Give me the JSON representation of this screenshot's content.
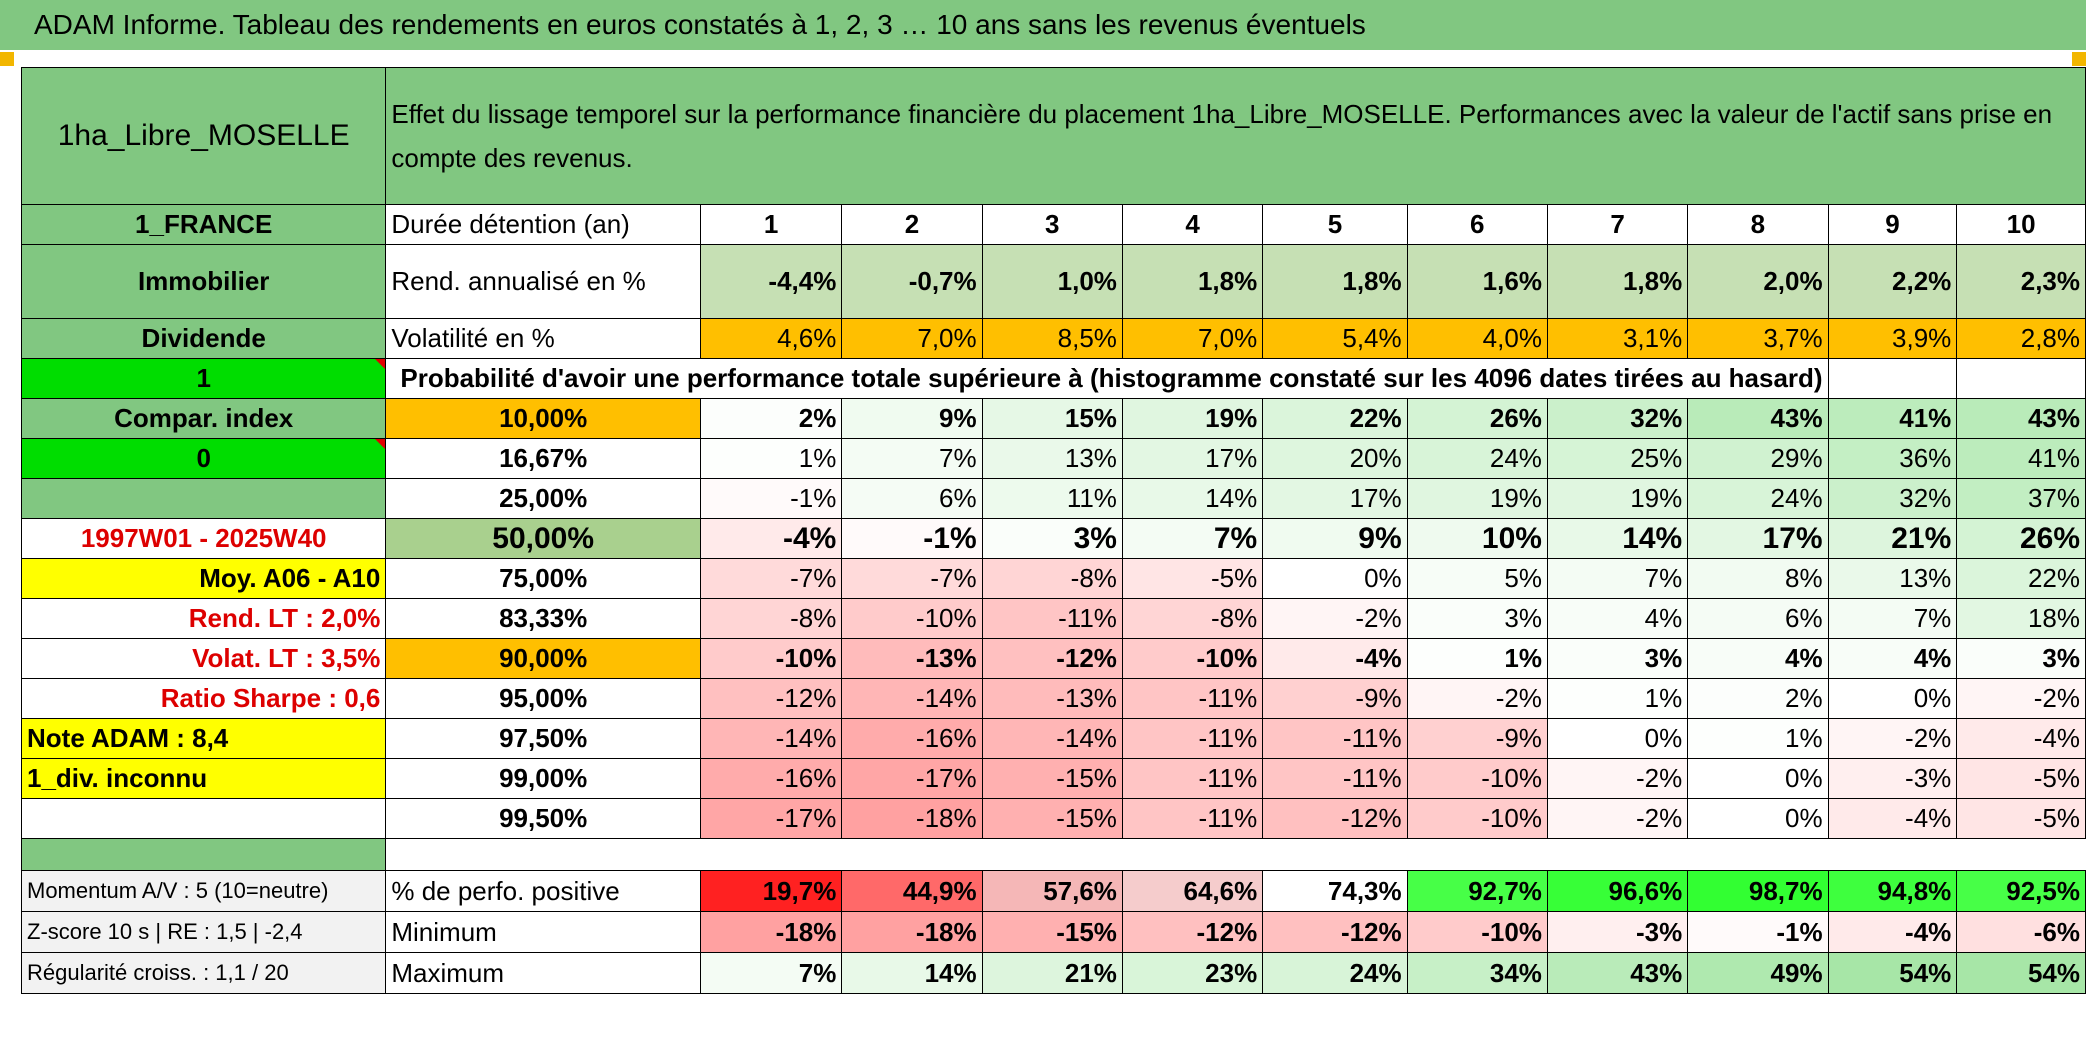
{
  "title": "ADAM Informe. Tableau des rendements en euros constatés à 1, 2, 3 … 10 ans sans les revenus éventuels",
  "left": {
    "asset": "1ha_Libre_MOSELLE",
    "country": "1_FRANCE",
    "sector": "Immobilier",
    "dividend_label": "Dividende",
    "dividend_value": "1",
    "compar_label": "Compar. index",
    "compar_value": "0",
    "period": "1997W01 - 2025W40",
    "moy": "Moy. A06 - A10",
    "rend_lt": "Rend. LT :   2,0%",
    "volat_lt": "Volat. LT :   3,5%",
    "sharpe": "Ratio Sharpe :    0,6",
    "note": "Note ADAM : 8,4",
    "div": "1_div. inconnu",
    "momentum": "Momentum A/V : 5 (10=neutre)",
    "zscore": "Z-score 10 s | RE : 1,5 | -2,4",
    "regularite": "Régularité croiss. : 1,1 / 20"
  },
  "header_text": "Effet du lissage temporel sur la performance financière du placement 1ha_Libre_MOSELLE. Performances avec la valeur de l'actif sans prise en compte des revenus.",
  "durations_label": "Durée détention (an)",
  "years": [
    "1",
    "2",
    "3",
    "4",
    "5",
    "6",
    "7",
    "8",
    "9",
    "10"
  ],
  "rend_label": "Rend. annualisé en %",
  "rend": [
    "-4,4%",
    "-0,7%",
    "1,0%",
    "1,8%",
    "1,8%",
    "1,6%",
    "1,8%",
    "2,0%",
    "2,2%",
    "2,3%"
  ],
  "vol_label": "Volatilité en %",
  "vol": [
    "4,6%",
    "7,0%",
    "8,5%",
    "7,0%",
    "5,4%",
    "4,0%",
    "3,1%",
    "3,7%",
    "3,9%",
    "2,8%"
  ],
  "proba_caption": "Probabilité d'avoir une performance totale supérieure à (histogramme constaté sur les 4096 dates tirées au hasard)",
  "quantiles": [
    {
      "q": "10,00%",
      "values": [
        "2%",
        "9%",
        "15%",
        "19%",
        "22%",
        "26%",
        "32%",
        "43%",
        "41%",
        "43%"
      ],
      "num": [
        2,
        9,
        15,
        19,
        22,
        26,
        32,
        43,
        41,
        43
      ]
    },
    {
      "q": "16,67%",
      "values": [
        "1%",
        "7%",
        "13%",
        "17%",
        "20%",
        "24%",
        "25%",
        "29%",
        "36%",
        "41%"
      ],
      "num": [
        1,
        7,
        13,
        17,
        20,
        24,
        25,
        29,
        36,
        41
      ]
    },
    {
      "q": "25,00%",
      "values": [
        "-1%",
        "6%",
        "11%",
        "14%",
        "17%",
        "19%",
        "19%",
        "24%",
        "32%",
        "37%"
      ],
      "num": [
        -1,
        6,
        11,
        14,
        17,
        19,
        19,
        24,
        32,
        37
      ]
    },
    {
      "q": "50,00%",
      "values": [
        "-4%",
        "-1%",
        "3%",
        "7%",
        "9%",
        "10%",
        "14%",
        "17%",
        "21%",
        "26%"
      ],
      "num": [
        -4,
        -1,
        3,
        7,
        9,
        10,
        14,
        17,
        21,
        26
      ]
    },
    {
      "q": "75,00%",
      "values": [
        "-7%",
        "-7%",
        "-8%",
        "-5%",
        "0%",
        "5%",
        "7%",
        "8%",
        "13%",
        "22%"
      ],
      "num": [
        -7,
        -7,
        -8,
        -5,
        0,
        5,
        7,
        8,
        13,
        22
      ]
    },
    {
      "q": "83,33%",
      "values": [
        "-8%",
        "-10%",
        "-11%",
        "-8%",
        "-2%",
        "3%",
        "4%",
        "6%",
        "7%",
        "18%"
      ],
      "num": [
        -8,
        -10,
        -11,
        -8,
        -2,
        3,
        4,
        6,
        7,
        18
      ]
    },
    {
      "q": "90,00%",
      "values": [
        "-10%",
        "-13%",
        "-12%",
        "-10%",
        "-4%",
        "1%",
        "3%",
        "4%",
        "4%",
        "3%"
      ],
      "num": [
        -10,
        -13,
        -12,
        -10,
        -4,
        1,
        3,
        4,
        4,
        3
      ]
    },
    {
      "q": "95,00%",
      "values": [
        "-12%",
        "-14%",
        "-13%",
        "-11%",
        "-9%",
        "-2%",
        "1%",
        "2%",
        "0%",
        "-2%"
      ],
      "num": [
        -12,
        -14,
        -13,
        -11,
        -9,
        -2,
        1,
        2,
        0,
        -2
      ]
    },
    {
      "q": "97,50%",
      "values": [
        "-14%",
        "-16%",
        "-14%",
        "-11%",
        "-11%",
        "-9%",
        "0%",
        "1%",
        "-2%",
        "-4%"
      ],
      "num": [
        -14,
        -16,
        -14,
        -11,
        -11,
        -9,
        0,
        1,
        -2,
        -4
      ]
    },
    {
      "q": "99,00%",
      "values": [
        "-16%",
        "-17%",
        "-15%",
        "-11%",
        "-11%",
        "-10%",
        "-2%",
        "0%",
        "-3%",
        "-5%"
      ],
      "num": [
        -16,
        -17,
        -15,
        -11,
        -11,
        -10,
        -2,
        0,
        -3,
        -5
      ]
    },
    {
      "q": "99,50%",
      "values": [
        "-17%",
        "-18%",
        "-15%",
        "-11%",
        "-12%",
        "-10%",
        "-2%",
        "0%",
        "-4%",
        "-5%"
      ],
      "num": [
        -17,
        -18,
        -15,
        -11,
        -12,
        -10,
        -2,
        0,
        -4,
        -5
      ]
    }
  ],
  "footer": [
    {
      "label": "% de perfo. positive",
      "values": [
        "19,7%",
        "44,9%",
        "57,6%",
        "64,6%",
        "74,3%",
        "92,7%",
        "96,6%",
        "98,7%",
        "94,8%",
        "92,5%"
      ],
      "num": [
        19.7,
        44.9,
        57.6,
        64.6,
        74.3,
        92.7,
        96.6,
        98.7,
        94.8,
        92.5
      ]
    },
    {
      "label": "Minimum",
      "values": [
        "-18%",
        "-18%",
        "-15%",
        "-12%",
        "-12%",
        "-10%",
        "-3%",
        "-1%",
        "-4%",
        "-6%"
      ],
      "num": [
        -18,
        -18,
        -15,
        -12,
        -12,
        -10,
        -3,
        -1,
        -4,
        -6
      ]
    },
    {
      "label": "Maximum",
      "values": [
        "7%",
        "14%",
        "21%",
        "23%",
        "24%",
        "34%",
        "43%",
        "49%",
        "54%",
        "54%"
      ],
      "num": [
        7,
        14,
        21,
        23,
        24,
        34,
        43,
        49,
        54,
        54
      ]
    }
  ],
  "colors": {
    "header_green": "#81c781",
    "orange": "#ffbf00",
    "yellow": "#ffff00",
    "bright_green": "#00dd00",
    "red_text": "#dd0000"
  }
}
